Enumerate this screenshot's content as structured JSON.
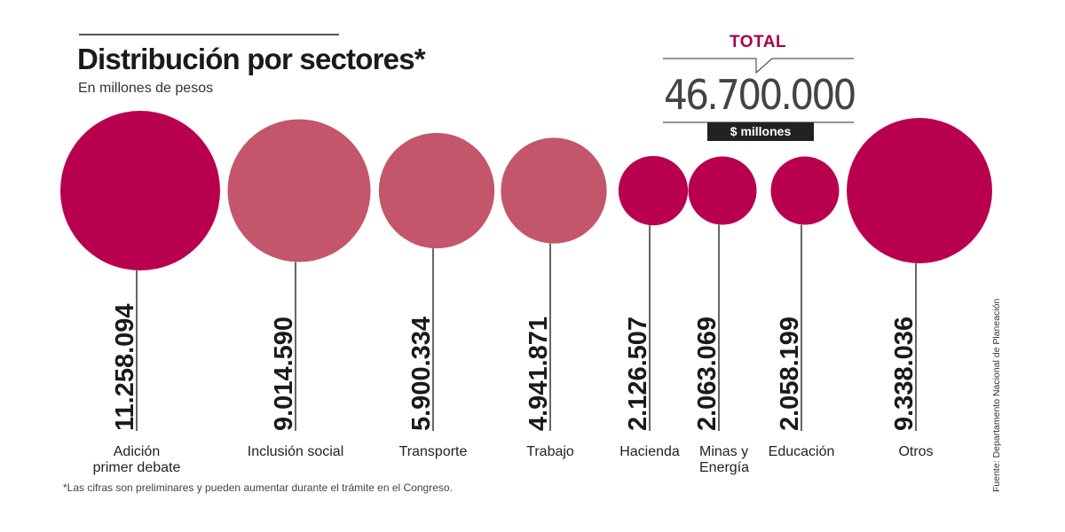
{
  "header": {
    "title": "Distribución por sectores*",
    "subtitle": "En millones de pesos"
  },
  "total": {
    "label": "TOTAL",
    "value": "46.700.000",
    "units": "$ millones"
  },
  "footnote": "*Las cifras son preliminares y pueden aumentar durante el trámite en el Congreso.",
  "source": "Fuente: Departamento Nacional de Planeación",
  "colors": {
    "dark": "#b8004f",
    "light": "#c3566b",
    "total_label": "#a8004a"
  },
  "chart_data": {
    "type": "bubble",
    "title": "Distribución por sectores*",
    "subtitle": "En millones de pesos",
    "units": "millones de pesos",
    "total": 46700000,
    "categories": [
      "Adición primer debate",
      "Inclusión social",
      "Transporte",
      "Trabajo",
      "Hacienda",
      "Minas y Energía",
      "Educación",
      "Otros"
    ],
    "values": [
      11258094,
      9014590,
      5900334,
      4941871,
      2126507,
      2063069,
      2058199,
      9338036
    ],
    "value_labels": [
      "11.258.094",
      "9.014.590",
      "5.900.334",
      "4.941.871",
      "2.126.507",
      "2.063.069",
      "2.058.199",
      "9.338.036"
    ],
    "label_lines": [
      [
        "Adición",
        "primer debate"
      ],
      [
        "Inclusión social"
      ],
      [
        "Transporte"
      ],
      [
        "Trabajo"
      ],
      [
        "Hacienda"
      ],
      [
        "Minas y",
        "Energía"
      ],
      [
        "Educación"
      ],
      [
        "Otros"
      ]
    ],
    "color_groups": [
      "dark",
      "light",
      "light",
      "light",
      "dark",
      "dark",
      "dark",
      "dark"
    ]
  }
}
